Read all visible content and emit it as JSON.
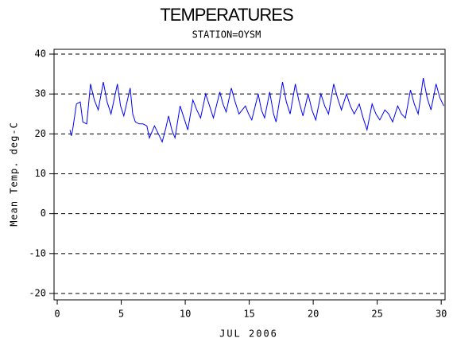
{
  "chart_data": {
    "type": "line",
    "title": "TEMPERATURES",
    "subtitle": "STATION=OYSM",
    "xlabel": "JUL 2006",
    "ylabel": "Mean Temp. deg-C",
    "xlim": [
      -0.25,
      30.3
    ],
    "xticks": [
      0,
      5,
      10,
      15,
      20,
      25,
      30
    ],
    "ylim": [
      -21.6,
      41.2
    ],
    "yticks": [
      -20,
      -10,
      0,
      10,
      20,
      30,
      40
    ],
    "grid": true,
    "series": [
      {
        "name": "Mean Temp",
        "color": "#0000ff",
        "x": [
          1.0,
          1.1,
          1.2,
          1.5,
          1.8,
          2.0,
          2.3,
          2.6,
          2.9,
          3.2,
          3.6,
          3.9,
          4.2,
          4.7,
          4.95,
          5.2,
          5.7,
          5.9,
          6.1,
          6.4,
          6.7,
          7.0,
          7.2,
          7.4,
          7.6,
          7.9,
          8.2,
          8.45,
          8.7,
          8.95,
          9.2,
          9.6,
          9.9,
          10.2,
          10.6,
          10.9,
          11.2,
          11.6,
          11.9,
          12.2,
          12.7,
          12.95,
          13.2,
          13.6,
          13.9,
          14.2,
          14.7,
          14.95,
          15.2,
          15.7,
          15.95,
          16.2,
          16.6,
          16.9,
          17.1,
          17.6,
          17.9,
          18.2,
          18.6,
          18.9,
          19.2,
          19.6,
          19.9,
          20.2,
          20.6,
          20.9,
          21.2,
          21.6,
          21.9,
          22.2,
          22.6,
          22.9,
          23.2,
          23.6,
          23.9,
          24.2,
          24.6,
          24.9,
          25.2,
          25.6,
          25.9,
          26.2,
          26.6,
          26.9,
          27.2,
          27.6,
          27.9,
          28.2,
          28.6,
          28.9,
          29.2,
          29.6,
          29.9,
          30.2
        ],
        "values": [
          21,
          19.5,
          21,
          27.5,
          28,
          23,
          22.5,
          32.5,
          28.5,
          26,
          33,
          28,
          25,
          32.5,
          27,
          24.5,
          31.5,
          25,
          23,
          22.5,
          22.5,
          22,
          19,
          20.5,
          22,
          20,
          18,
          21,
          24.5,
          21,
          19,
          27,
          24,
          21,
          28.5,
          26,
          24,
          30,
          27,
          24,
          30.5,
          27.5,
          25.5,
          31.5,
          28,
          25,
          27,
          25,
          23.5,
          30,
          26,
          24,
          30.5,
          25,
          23,
          33,
          28,
          25,
          32.5,
          28,
          24.5,
          30,
          26,
          23.5,
          30,
          27,
          25,
          32.5,
          29,
          26,
          30,
          27,
          25,
          27.5,
          24,
          21,
          27.5,
          25,
          23.5,
          26,
          25,
          23,
          27,
          25,
          24,
          31,
          27.5,
          25,
          34,
          29,
          26,
          32.5,
          29,
          27
        ]
      }
    ]
  }
}
